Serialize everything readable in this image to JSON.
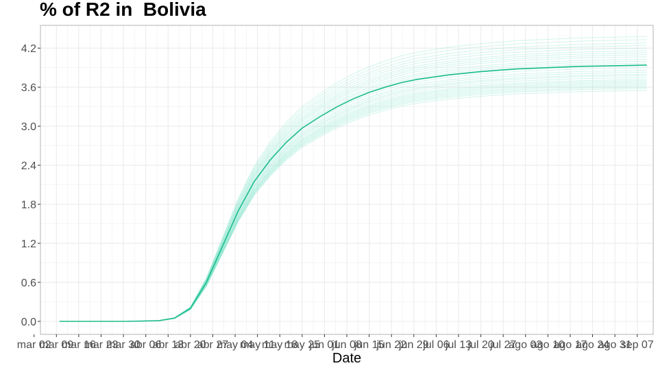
{
  "chart_data": {
    "type": "line",
    "title": "% of R2 in  Bolivia",
    "xlabel": "Date",
    "ylabel": "",
    "ylim": [
      -0.2,
      4.55
    ],
    "yticks": [
      0.0,
      0.6,
      1.2,
      1.8,
      2.4,
      3.0,
      3.6,
      4.2
    ],
    "ytick_labels": [
      "0.0",
      "0.6",
      "1.2",
      "1.8",
      "2.4",
      "3.0",
      "3.6",
      "4.2"
    ],
    "xlim": [
      "2020-03-04",
      "2020-09-12"
    ],
    "xticks": [
      "2020-03-02",
      "2020-03-09",
      "2020-03-16",
      "2020-03-23",
      "2020-03-30",
      "2020-04-06",
      "2020-04-13",
      "2020-04-20",
      "2020-04-27",
      "2020-05-04",
      "2020-05-11",
      "2020-05-18",
      "2020-05-25",
      "2020-06-01",
      "2020-06-08",
      "2020-06-15",
      "2020-06-22",
      "2020-06-29",
      "2020-07-06",
      "2020-07-13",
      "2020-07-20",
      "2020-07-27",
      "2020-08-03",
      "2020-08-10",
      "2020-08-17",
      "2020-08-24",
      "2020-08-31",
      "2020-09-07"
    ],
    "xtick_labels": [
      "mar 02",
      "mar 09",
      "mar 16",
      "mar 23",
      "mar 30",
      "abr 06",
      "abr 13",
      "abr 20",
      "abr 27",
      "may 04",
      "may 11",
      "may 18",
      "may 25",
      "jun 01",
      "jun 08",
      "jun 15",
      "jun 22",
      "jun 29",
      "jul 06",
      "jul 13",
      "jul 20",
      "jul 27",
      "ago 03",
      "ago 10",
      "ago 17",
      "ago 24",
      "ago 31",
      "sep 07"
    ],
    "grid": true,
    "colors": {
      "main": "#1abc8c",
      "simulations": "#7fe3c8",
      "grid": "#ebebeb",
      "panel_border": "#b3b3b3",
      "tick_text": "#4d4d4d"
    },
    "series": [
      {
        "x": [
          "2020-03-10",
          "2020-03-20",
          "2020-03-31",
          "2020-04-10",
          "2020-04-15",
          "2020-04-20",
          "2020-04-25",
          "2020-04-30",
          "2020-05-05",
          "2020-05-10",
          "2020-05-15",
          "2020-05-20",
          "2020-05-25",
          "2020-05-31",
          "2020-06-05",
          "2020-06-10",
          "2020-06-15",
          "2020-06-20",
          "2020-06-25",
          "2020-06-30",
          "2020-07-10",
          "2020-07-20",
          "2020-07-31",
          "2020-08-10",
          "2020-08-20",
          "2020-08-31",
          "2020-09-10"
        ],
        "values": [
          0.0,
          0.0,
          0.0,
          0.01,
          0.05,
          0.2,
          0.6,
          1.15,
          1.7,
          2.15,
          2.48,
          2.75,
          2.97,
          3.16,
          3.3,
          3.42,
          3.52,
          3.6,
          3.67,
          3.72,
          3.79,
          3.84,
          3.88,
          3.9,
          3.92,
          3.93,
          3.94
        ]
      }
    ],
    "simulation_final_values": [
      3.55,
      3.58,
      3.6,
      3.62,
      3.64,
      3.66,
      3.68,
      3.7,
      3.72,
      3.75,
      3.78,
      3.8,
      3.83,
      3.86,
      3.9,
      3.93,
      3.97,
      4.0,
      4.03,
      4.07,
      4.1,
      4.13,
      4.16,
      4.2,
      4.24,
      4.28,
      4.33,
      4.38
    ]
  }
}
